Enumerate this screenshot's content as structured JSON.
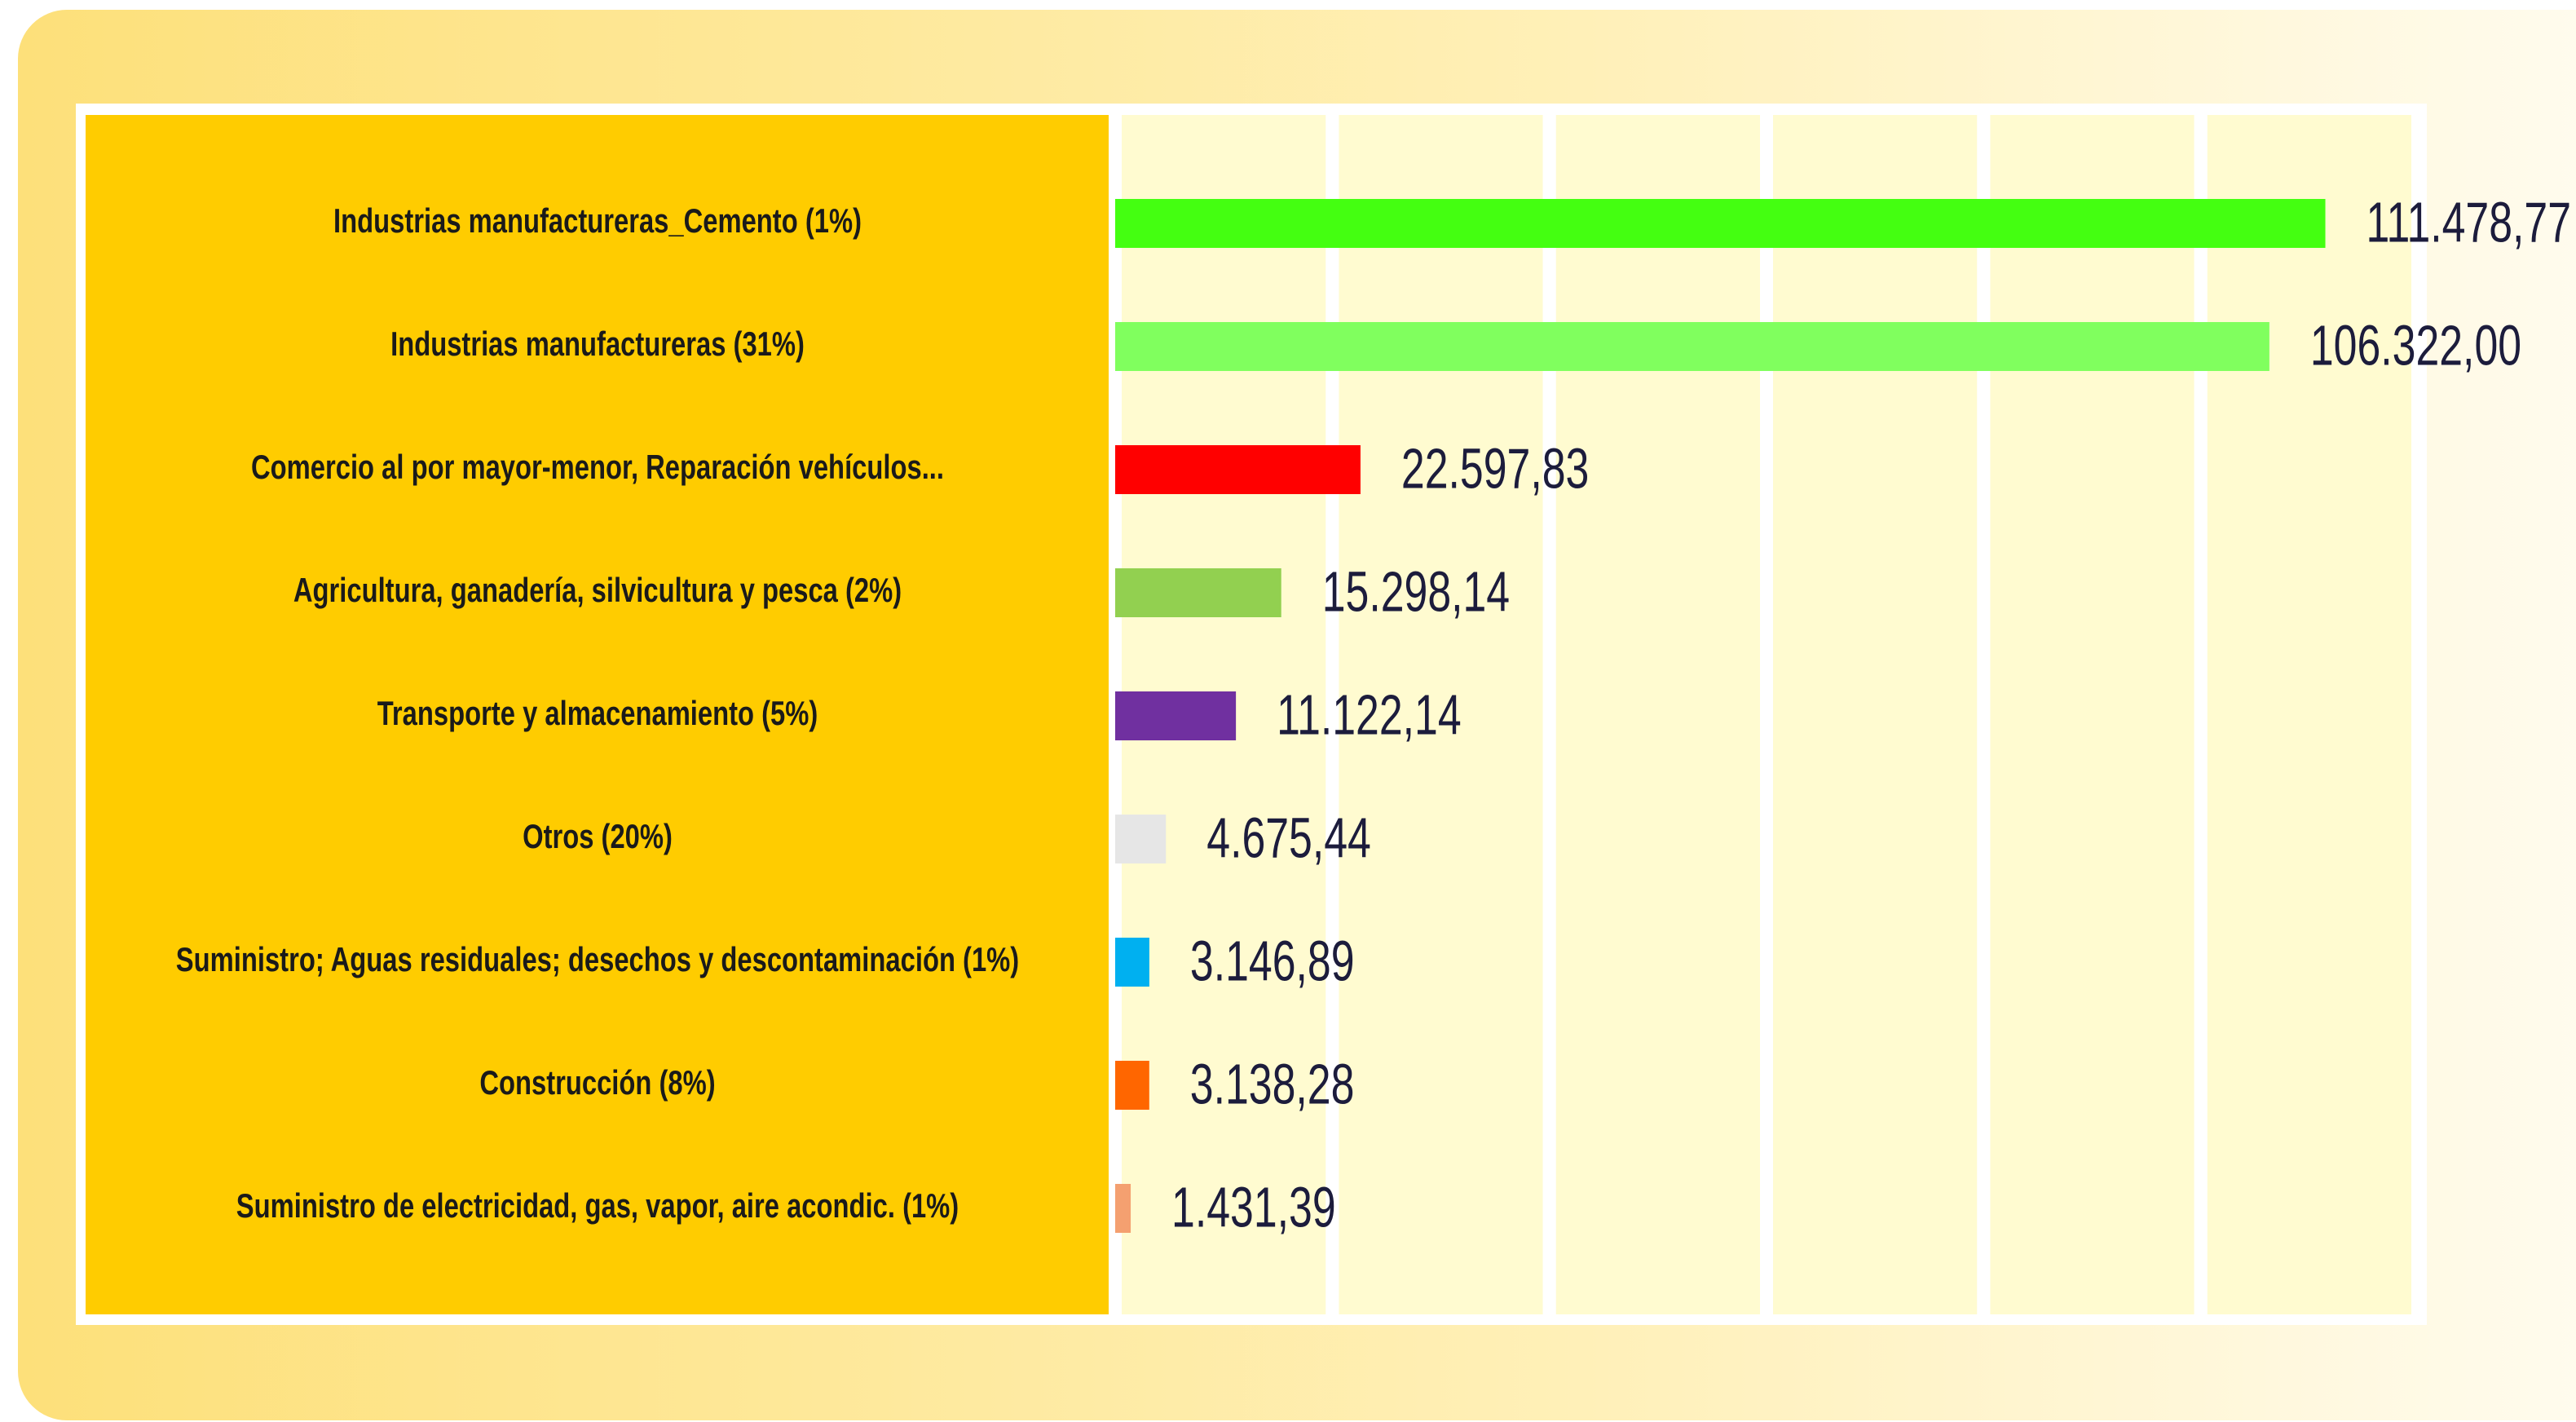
{
  "chart_data": {
    "type": "barh",
    "categories": [
      "Industrias manufactureras_Cemento (1%)",
      "Industrias manufactureras (31%)",
      "Comercio al por mayor-menor, Reparación vehículos...",
      "Agricultura, ganadería, silvicultura y pesca (2%)",
      "Transporte y almacenamiento  (5%)",
      "Otros (20%)",
      "Suministro; Aguas residuales; desechos y descontaminación  (1%)",
      "Construcción (8%)",
      "Suministro de electricidad, gas, vapor, aire acondic.  (1%)"
    ],
    "values": [
      111478.77,
      106322.0,
      22597.83,
      15298.14,
      11122.14,
      4675.44,
      3146.89,
      3138.28,
      1431.39
    ],
    "value_labels": [
      "111.478,77",
      "106.322,00",
      "22.597,83",
      "15.298,14",
      "11.122,14",
      "4.675,44",
      "3.146,89",
      "3.138,28",
      "1.431,39"
    ],
    "colors": [
      "#44ff11",
      "#80ff5e",
      "#ff0000",
      "#92d050",
      "#7030a0",
      "#e6e6e6",
      "#00b0f0",
      "#ff6600",
      "#f4a070"
    ],
    "xlim": [
      0,
      120000
    ],
    "xticks": [
      0,
      20000,
      40000,
      60000,
      80000,
      100000,
      120000
    ],
    "grid": true
  }
}
